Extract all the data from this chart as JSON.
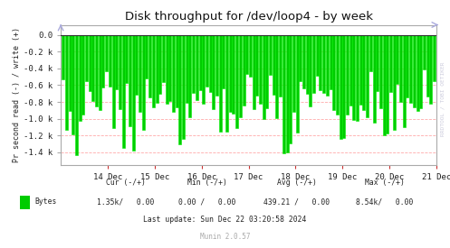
{
  "title": "Disk throughput for /dev/loop4 - by week",
  "ylabel": "Pr second read (-) / write (+)",
  "background_color": "#ffffff",
  "plot_bg_color": "#ffffff",
  "line_color": "#00ee00",
  "fill_color": "#00cc00",
  "ytick_vals": [
    0.0,
    -0.2,
    -0.4,
    -0.6,
    -0.8,
    -1.0,
    -1.2,
    -1.4
  ],
  "ytick_labels": [
    "0.0",
    "-0.2 k",
    "-0.4 k",
    "-0.6 k",
    "-0.8 k",
    "-1.0 k",
    "-1.2 k",
    "-1.4 k"
  ],
  "ylim": [
    -1.55,
    0.12
  ],
  "xlim": [
    0.0,
    8.0
  ],
  "xtick_positions": [
    1,
    2,
    3,
    4,
    5,
    6,
    7,
    8
  ],
  "xtick_labels": [
    "14 Dec",
    "15 Dec",
    "16 Dec",
    "17 Dec",
    "18 Dec",
    "19 Dec",
    "20 Dec",
    "21 Dec"
  ],
  "legend_label": "Bytes",
  "legend_color": "#00cc00",
  "watermark": "RRDTOOL / TOBI OETIKER",
  "footer_cur_header": "Cur (-/+)",
  "footer_min_header": "Min (-/+)",
  "footer_avg_header": "Avg (-/+)",
  "footer_max_header": "Max (-/+)",
  "footer_cur": "1.35k/   0.00",
  "footer_min": "0.00 /   0.00",
  "footer_avg": "439.21 /   0.00",
  "footer_max": "8.54k/   0.00",
  "footer_last_update": "Last update: Sun Dec 22 03:20:58 2024",
  "footer_munin": "Munin 2.0.57",
  "num_spikes": 112,
  "spike_seed": 7
}
